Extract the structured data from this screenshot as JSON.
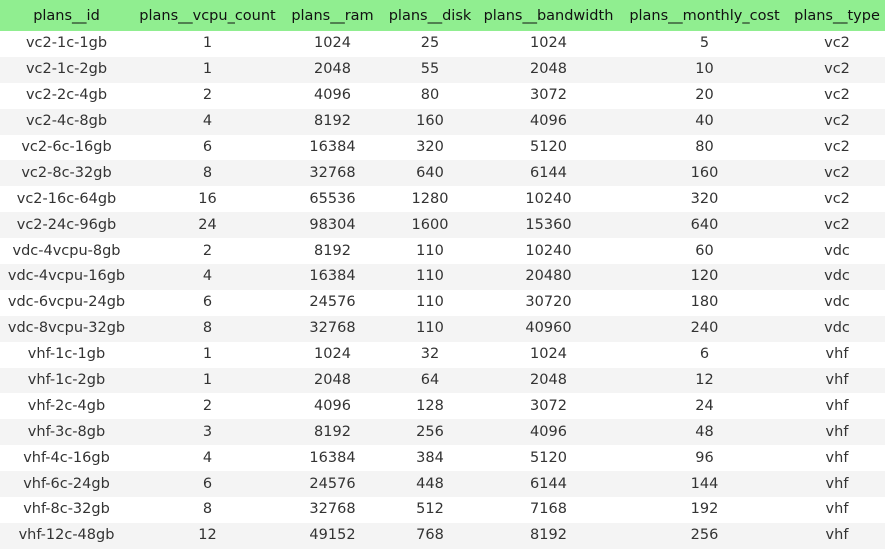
{
  "table": {
    "header_bg": "#90ee90",
    "columns": [
      "plans__id",
      "plans__vcpu_count",
      "plans__ram",
      "plans__disk",
      "plans__bandwidth",
      "plans__monthly_cost",
      "plans__type"
    ],
    "rows": [
      [
        "vc2-1c-1gb",
        "1",
        "1024",
        "25",
        "1024",
        "5",
        "vc2"
      ],
      [
        "vc2-1c-2gb",
        "1",
        "2048",
        "55",
        "2048",
        "10",
        "vc2"
      ],
      [
        "vc2-2c-4gb",
        "2",
        "4096",
        "80",
        "3072",
        "20",
        "vc2"
      ],
      [
        "vc2-4c-8gb",
        "4",
        "8192",
        "160",
        "4096",
        "40",
        "vc2"
      ],
      [
        "vc2-6c-16gb",
        "6",
        "16384",
        "320",
        "5120",
        "80",
        "vc2"
      ],
      [
        "vc2-8c-32gb",
        "8",
        "32768",
        "640",
        "6144",
        "160",
        "vc2"
      ],
      [
        "vc2-16c-64gb",
        "16",
        "65536",
        "1280",
        "10240",
        "320",
        "vc2"
      ],
      [
        "vc2-24c-96gb",
        "24",
        "98304",
        "1600",
        "15360",
        "640",
        "vc2"
      ],
      [
        "vdc-4vcpu-8gb",
        "2",
        "8192",
        "110",
        "10240",
        "60",
        "vdc"
      ],
      [
        "vdc-4vcpu-16gb",
        "4",
        "16384",
        "110",
        "20480",
        "120",
        "vdc"
      ],
      [
        "vdc-6vcpu-24gb",
        "6",
        "24576",
        "110",
        "30720",
        "180",
        "vdc"
      ],
      [
        "vdc-8vcpu-32gb",
        "8",
        "32768",
        "110",
        "40960",
        "240",
        "vdc"
      ],
      [
        "vhf-1c-1gb",
        "1",
        "1024",
        "32",
        "1024",
        "6",
        "vhf"
      ],
      [
        "vhf-1c-2gb",
        "1",
        "2048",
        "64",
        "2048",
        "12",
        "vhf"
      ],
      [
        "vhf-2c-4gb",
        "2",
        "4096",
        "128",
        "3072",
        "24",
        "vhf"
      ],
      [
        "vhf-3c-8gb",
        "3",
        "8192",
        "256",
        "4096",
        "48",
        "vhf"
      ],
      [
        "vhf-4c-16gb",
        "4",
        "16384",
        "384",
        "5120",
        "96",
        "vhf"
      ],
      [
        "vhf-6c-24gb",
        "6",
        "24576",
        "448",
        "6144",
        "144",
        "vhf"
      ],
      [
        "vhf-8c-32gb",
        "8",
        "32768",
        "512",
        "7168",
        "192",
        "vhf"
      ],
      [
        "vhf-12c-48gb",
        "12",
        "49152",
        "768",
        "8192",
        "256",
        "vhf"
      ]
    ]
  }
}
